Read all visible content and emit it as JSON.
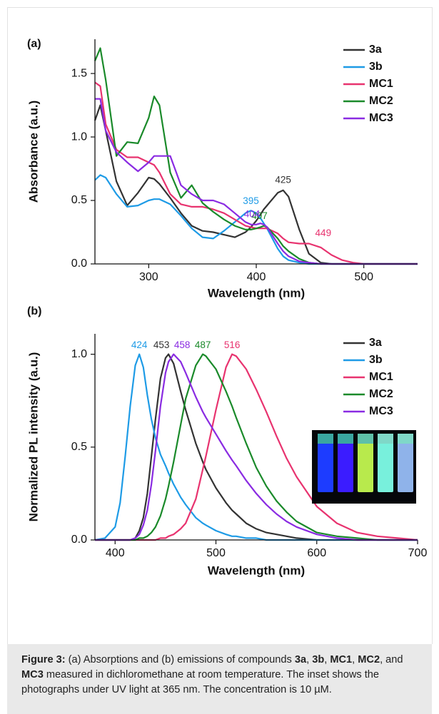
{
  "chart_data": [
    {
      "type": "line",
      "panel_label": "(a)",
      "x_label": "Wavelength (nm)",
      "y_label": "Absorbance (a.u.)",
      "x": [
        250,
        255,
        260,
        270,
        280,
        290,
        300,
        305,
        310,
        320,
        330,
        340,
        350,
        360,
        370,
        380,
        390,
        395,
        400,
        404,
        407,
        410,
        420,
        425,
        430,
        440,
        449,
        460,
        470,
        480,
        490,
        500,
        520,
        550
      ],
      "xlim": [
        250,
        550
      ],
      "xticks": [
        300,
        400,
        500
      ],
      "ylim": [
        0,
        1.77
      ],
      "yticks": [
        {
          "value": 0,
          "label": "0.0"
        },
        {
          "value": 0.5,
          "label": "0.5"
        },
        {
          "value": 1,
          "label": "1.0"
        },
        {
          "value": 1.5,
          "label": "1.5"
        }
      ],
      "series": [
        {
          "name": "3a",
          "color": "#333333",
          "peak": 425,
          "values": [
            1.13,
            1.25,
            1.05,
            0.65,
            0.46,
            0.56,
            0.68,
            0.67,
            0.63,
            0.52,
            0.4,
            0.3,
            0.26,
            0.25,
            0.23,
            0.21,
            0.25,
            0.29,
            0.34,
            0.39,
            0.43,
            0.46,
            0.56,
            0.58,
            0.53,
            0.27,
            0.08,
            0.01,
            0,
            0,
            0,
            0,
            0,
            0
          ]
        },
        {
          "name": "3b",
          "color": "#1e9be6",
          "peak": 395,
          "values": [
            0.66,
            0.7,
            0.68,
            0.55,
            0.45,
            0.46,
            0.5,
            0.51,
            0.51,
            0.47,
            0.38,
            0.28,
            0.21,
            0.2,
            0.26,
            0.33,
            0.4,
            0.42,
            0.4,
            0.36,
            0.32,
            0.28,
            0.12,
            0.06,
            0.03,
            0.01,
            0,
            0,
            0,
            0,
            0,
            0,
            0,
            0
          ]
        },
        {
          "name": "MC1",
          "color": "#e8336f",
          "peak": 449,
          "values": [
            1.43,
            1.4,
            1.1,
            0.9,
            0.84,
            0.84,
            0.8,
            0.78,
            0.72,
            0.55,
            0.47,
            0.45,
            0.45,
            0.43,
            0.4,
            0.35,
            0.3,
            0.29,
            0.28,
            0.28,
            0.28,
            0.28,
            0.24,
            0.2,
            0.17,
            0.16,
            0.16,
            0.13,
            0.07,
            0.03,
            0.01,
            0,
            0,
            0
          ]
        },
        {
          "name": "MC2",
          "color": "#1a8a2a",
          "peak": 407,
          "values": [
            1.6,
            1.7,
            1.45,
            0.85,
            0.96,
            0.95,
            1.15,
            1.32,
            1.25,
            0.72,
            0.52,
            0.62,
            0.48,
            0.41,
            0.35,
            0.3,
            0.27,
            0.27,
            0.28,
            0.29,
            0.3,
            0.29,
            0.2,
            0.14,
            0.1,
            0.04,
            0.01,
            0,
            0,
            0,
            0,
            0,
            0,
            0
          ]
        },
        {
          "name": "MC3",
          "color": "#8a2be2",
          "peak": 404,
          "values": [
            1.3,
            1.3,
            1.05,
            0.88,
            0.8,
            0.73,
            0.8,
            0.85,
            0.85,
            0.85,
            0.62,
            0.55,
            0.5,
            0.5,
            0.47,
            0.4,
            0.33,
            0.31,
            0.31,
            0.32,
            0.31,
            0.29,
            0.16,
            0.1,
            0.06,
            0.02,
            0.01,
            0,
            0,
            0,
            0,
            0,
            0,
            0
          ]
        }
      ]
    },
    {
      "type": "line",
      "panel_label": "(b)",
      "x_label": "Wavelength (nm)",
      "y_label": "Normalized PL intensity (a.u.)",
      "x": [
        380,
        390,
        400,
        405,
        410,
        415,
        420,
        424,
        428,
        432,
        436,
        440,
        445,
        450,
        453,
        458,
        465,
        470,
        480,
        487,
        490,
        500,
        510,
        516,
        520,
        530,
        540,
        550,
        560,
        570,
        580,
        600,
        620,
        640,
        660,
        680,
        700
      ],
      "xlim": [
        380,
        700
      ],
      "xticks": [
        400,
        500,
        600,
        700
      ],
      "ylim": [
        0,
        1.11
      ],
      "yticks": [
        {
          "value": 0,
          "label": "0.0"
        },
        {
          "value": 0.5,
          "label": "0.5"
        },
        {
          "value": 1,
          "label": "1.0"
        }
      ],
      "series": [
        {
          "name": "3a",
          "color": "#333333",
          "peak": 453,
          "values": [
            0,
            0,
            0,
            0,
            0,
            0,
            0.01,
            0.05,
            0.12,
            0.25,
            0.45,
            0.65,
            0.87,
            0.98,
            1.0,
            0.95,
            0.8,
            0.7,
            0.52,
            0.42,
            0.38,
            0.28,
            0.2,
            0.16,
            0.14,
            0.09,
            0.06,
            0.04,
            0.03,
            0.02,
            0.01,
            0,
            0,
            0,
            0,
            0,
            0
          ]
        },
        {
          "name": "3b",
          "color": "#1e9be6",
          "peak": 424,
          "values": [
            0,
            0.01,
            0.07,
            0.2,
            0.45,
            0.72,
            0.94,
            1.0,
            0.93,
            0.78,
            0.65,
            0.55,
            0.46,
            0.4,
            0.36,
            0.3,
            0.23,
            0.19,
            0.12,
            0.09,
            0.08,
            0.05,
            0.03,
            0.02,
            0.02,
            0.01,
            0.01,
            0,
            0,
            0,
            0,
            0,
            0,
            0,
            0,
            0,
            0
          ]
        },
        {
          "name": "MC1",
          "color": "#e8336f",
          "peak": 516,
          "values": [
            0,
            0,
            0,
            0,
            0,
            0,
            0,
            0,
            0,
            0,
            0,
            0,
            0.01,
            0.01,
            0.02,
            0.03,
            0.06,
            0.09,
            0.22,
            0.38,
            0.45,
            0.7,
            0.93,
            1.0,
            0.99,
            0.92,
            0.81,
            0.69,
            0.56,
            0.44,
            0.34,
            0.18,
            0.09,
            0.04,
            0.02,
            0.01,
            0
          ]
        },
        {
          "name": "MC2",
          "color": "#1a8a2a",
          "peak": 487,
          "values": [
            0,
            0,
            0,
            0,
            0,
            0,
            0,
            0.01,
            0.01,
            0.02,
            0.04,
            0.07,
            0.13,
            0.22,
            0.29,
            0.42,
            0.62,
            0.76,
            0.94,
            1.0,
            0.99,
            0.92,
            0.8,
            0.72,
            0.66,
            0.52,
            0.39,
            0.29,
            0.21,
            0.15,
            0.1,
            0.04,
            0.02,
            0.01,
            0,
            0,
            0
          ]
        },
        {
          "name": "MC3",
          "color": "#8a2be2",
          "peak": 458,
          "values": [
            0,
            0,
            0,
            0,
            0,
            0,
            0.01,
            0.03,
            0.08,
            0.16,
            0.3,
            0.48,
            0.72,
            0.9,
            0.96,
            1.0,
            0.96,
            0.9,
            0.77,
            0.69,
            0.66,
            0.57,
            0.48,
            0.43,
            0.4,
            0.32,
            0.25,
            0.19,
            0.14,
            0.1,
            0.07,
            0.03,
            0.01,
            0,
            0,
            0,
            0
          ]
        }
      ]
    }
  ],
  "caption": [
    {
      "text": "Figure 3:",
      "bold": true
    },
    {
      "text": " (a) Absorptions and (b) emissions of compounds ",
      "bold": false
    },
    {
      "text": "3a",
      "bold": true
    },
    {
      "text": ", ",
      "bold": false
    },
    {
      "text": "3b",
      "bold": true
    },
    {
      "text": ", ",
      "bold": false
    },
    {
      "text": "MC1",
      "bold": true
    },
    {
      "text": ", ",
      "bold": false
    },
    {
      "text": "MC2",
      "bold": true
    },
    {
      "text": ", and ",
      "bold": false
    },
    {
      "text": "MC3",
      "bold": true
    },
    {
      "text": " measured in dichloromethane at room temperature. The inset shows the photographs under UV light at 365 nm. The concentration is 10 µM.",
      "bold": false
    }
  ]
}
